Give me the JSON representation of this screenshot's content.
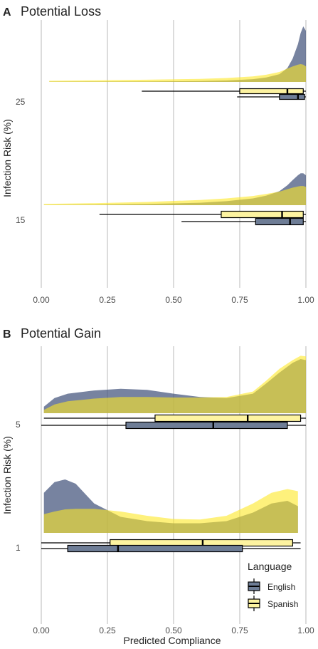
{
  "colors": {
    "english": "#3d4f77",
    "spanish": "#fde725",
    "english_box": "#6e7d96",
    "spanish_box": "#fdf3a0",
    "overlap": "#a7a44e",
    "grid": "#dcdcdc",
    "text": "#222222",
    "tick_text": "#4d4d4d"
  },
  "chart_data": [
    {
      "panel_letter": "A",
      "title": "Potential Loss",
      "type": "raincloud",
      "xlabel": "",
      "ylabel": "Infection Risk (%)",
      "xlim": [
        0,
        1
      ],
      "x_ticks": [
        "0.00",
        "0.25",
        "0.50",
        "0.75",
        "1.00"
      ],
      "grid": true,
      "groups": [
        {
          "label": "25",
          "density": {
            "x": [
              0.03,
              0.2,
              0.4,
              0.6,
              0.7,
              0.8,
              0.85,
              0.9,
              0.93,
              0.95,
              0.97,
              0.98,
              0.99,
              1.0
            ],
            "English": [
              0.005,
              0.006,
              0.008,
              0.015,
              0.025,
              0.05,
              0.08,
              0.14,
              0.25,
              0.42,
              0.68,
              0.88,
              1.0,
              0.92
            ],
            "Spanish": [
              0.02,
              0.03,
              0.04,
              0.055,
              0.07,
              0.1,
              0.13,
              0.18,
              0.24,
              0.28,
              0.31,
              0.32,
              0.31,
              0.28
            ]
          },
          "boxplots": [
            {
              "series": "Spanish",
              "min": 0.38,
              "q1": 0.75,
              "median": 0.93,
              "q3": 0.99,
              "max": 1.0
            },
            {
              "series": "English",
              "min": 0.74,
              "q1": 0.9,
              "median": 0.97,
              "q3": 0.995,
              "max": 1.0
            }
          ]
        },
        {
          "label": "15",
          "density": {
            "x": [
              0.01,
              0.2,
              0.4,
              0.6,
              0.7,
              0.8,
              0.85,
              0.9,
              0.93,
              0.95,
              0.97,
              0.98,
              0.99,
              1.0
            ],
            "English": [
              0.005,
              0.01,
              0.03,
              0.06,
              0.1,
              0.17,
              0.24,
              0.35,
              0.5,
              0.63,
              0.75,
              0.8,
              0.8,
              0.75
            ],
            "Spanish": [
              0.03,
              0.05,
              0.08,
              0.13,
              0.17,
              0.23,
              0.28,
              0.34,
              0.4,
              0.44,
              0.47,
              0.48,
              0.48,
              0.46
            ]
          },
          "boxplots": [
            {
              "series": "Spanish",
              "min": 0.22,
              "q1": 0.68,
              "median": 0.91,
              "q3": 0.99,
              "max": 1.0
            },
            {
              "series": "English",
              "min": 0.53,
              "q1": 0.81,
              "median": 0.94,
              "q3": 0.99,
              "max": 1.0
            }
          ]
        }
      ]
    },
    {
      "panel_letter": "B",
      "title": "Potential Gain",
      "type": "raincloud",
      "xlabel": "Predicted Compliance",
      "ylabel": "Infection Risk (%)",
      "xlim": [
        0,
        1
      ],
      "x_ticks": [
        "0.00",
        "0.25",
        "0.50",
        "0.75",
        "1.00"
      ],
      "grid": true,
      "groups": [
        {
          "label": "5",
          "density": {
            "x": [
              0.01,
              0.05,
              0.1,
              0.2,
              0.3,
              0.4,
              0.5,
              0.6,
              0.7,
              0.8,
              0.85,
              0.9,
              0.95,
              0.98,
              1.0
            ],
            "English": [
              0.12,
              0.28,
              0.36,
              0.42,
              0.45,
              0.43,
              0.36,
              0.3,
              0.28,
              0.36,
              0.55,
              0.75,
              0.93,
              1.0,
              0.98
            ],
            "Spanish": [
              0.06,
              0.16,
              0.22,
              0.27,
              0.3,
              0.3,
              0.29,
              0.29,
              0.3,
              0.4,
              0.6,
              0.82,
              0.98,
              1.06,
              1.05
            ]
          },
          "boxplots": [
            {
              "series": "Spanish",
              "min": 0.01,
              "q1": 0.43,
              "median": 0.78,
              "q3": 0.98,
              "max": 1.0
            },
            {
              "series": "English",
              "min": 0.0,
              "q1": 0.32,
              "median": 0.65,
              "q3": 0.93,
              "max": 1.0
            }
          ]
        },
        {
          "label": "1",
          "density": {
            "x": [
              0.01,
              0.05,
              0.09,
              0.13,
              0.2,
              0.3,
              0.4,
              0.5,
              0.6,
              0.7,
              0.8,
              0.87,
              0.93,
              0.97
            ],
            "English": [
              0.75,
              0.95,
              1.0,
              0.92,
              0.55,
              0.3,
              0.22,
              0.18,
              0.18,
              0.22,
              0.38,
              0.55,
              0.6,
              0.5
            ],
            "Spanish": [
              0.35,
              0.4,
              0.44,
              0.45,
              0.45,
              0.4,
              0.32,
              0.26,
              0.25,
              0.32,
              0.55,
              0.75,
              0.82,
              0.78
            ]
          },
          "boxplots": [
            {
              "series": "Spanish",
              "min": 0.0,
              "q1": 0.26,
              "median": 0.61,
              "q3": 0.95,
              "max": 0.98
            },
            {
              "series": "English",
              "min": 0.0,
              "q1": 0.1,
              "median": 0.29,
              "q3": 0.76,
              "max": 0.98
            }
          ]
        }
      ],
      "legend": {
        "title": "Language",
        "placement": "bottom-right",
        "items": [
          "English",
          "Spanish"
        ]
      }
    }
  ]
}
